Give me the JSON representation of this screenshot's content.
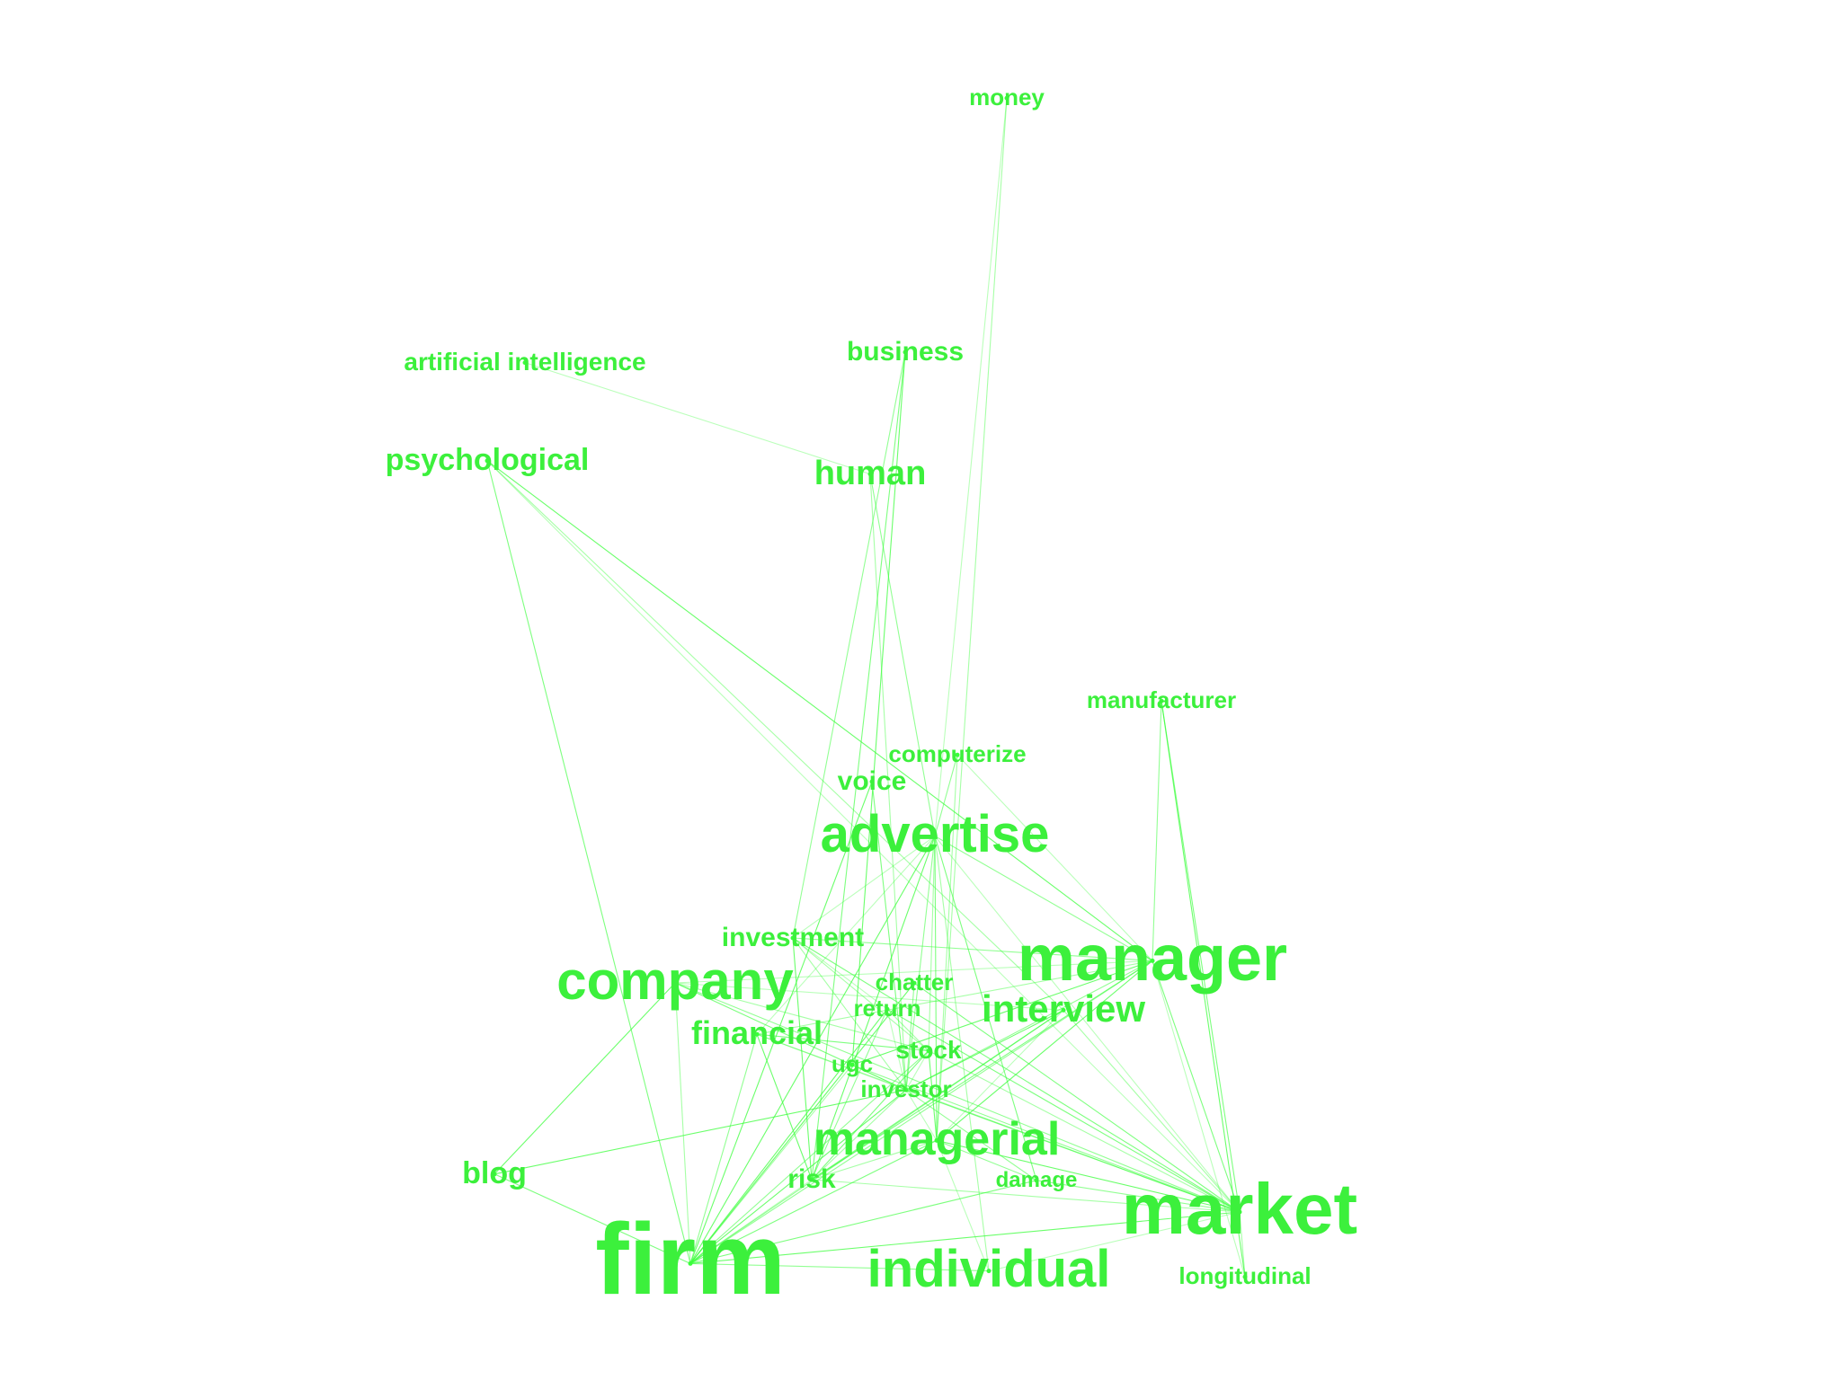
{
  "colors": {
    "text": "#3cf03c",
    "edge": "#39ff3a",
    "background": "#ffffff"
  },
  "terms": {
    "money": "money",
    "business": "business",
    "artificial_intelligence": "artificial intelligence",
    "psychological": "psychological",
    "human": "human",
    "manufacturer": "manufacturer",
    "computerize": "computerize",
    "voice": "voice",
    "advertise": "advertise",
    "investment": "investment",
    "manager": "manager",
    "company": "company",
    "chatter": "chatter",
    "return": "return",
    "interview": "interview",
    "financial": "financial",
    "stock": "stock",
    "ugc": "ugc",
    "investor": "investor",
    "managerial": "managerial",
    "blog": "blog",
    "risk": "risk",
    "damage": "damage",
    "market": "market",
    "firm": "firm",
    "individual": "individual",
    "longitudinal": "longitudinal"
  },
  "edges": [
    [
      "money",
      "advertise"
    ],
    [
      "money",
      "managerial"
    ],
    [
      "business",
      "investment"
    ],
    [
      "business",
      "risk"
    ],
    [
      "business",
      "ugc"
    ],
    [
      "artificial_intelligence",
      "human"
    ],
    [
      "human",
      "investor"
    ],
    [
      "human",
      "advertise"
    ],
    [
      "psychological",
      "firm"
    ],
    [
      "psychological",
      "manager"
    ],
    [
      "psychological",
      "market"
    ],
    [
      "psychological",
      "interview"
    ],
    [
      "manufacturer",
      "manager"
    ],
    [
      "manufacturer",
      "market"
    ],
    [
      "manufacturer",
      "longitudinal"
    ],
    [
      "computerize",
      "manager"
    ],
    [
      "computerize",
      "managerial"
    ],
    [
      "computerize",
      "advertise"
    ],
    [
      "voice",
      "investor"
    ],
    [
      "voice",
      "firm"
    ],
    [
      "advertise",
      "investment"
    ],
    [
      "advertise",
      "stock"
    ],
    [
      "advertise",
      "investor"
    ],
    [
      "advertise",
      "managerial"
    ],
    [
      "advertise",
      "firm"
    ],
    [
      "advertise",
      "market"
    ],
    [
      "advertise",
      "individual"
    ],
    [
      "advertise",
      "manager"
    ],
    [
      "advertise",
      "damage"
    ],
    [
      "advertise",
      "risk"
    ],
    [
      "advertise",
      "financial"
    ],
    [
      "investment",
      "investor"
    ],
    [
      "investment",
      "manager"
    ],
    [
      "investment",
      "market"
    ],
    [
      "investment",
      "risk"
    ],
    [
      "investment",
      "return"
    ],
    [
      "investment",
      "stock"
    ],
    [
      "manager",
      "firm"
    ],
    [
      "manager",
      "market"
    ],
    [
      "manager",
      "managerial"
    ],
    [
      "manager",
      "company"
    ],
    [
      "manager",
      "financial"
    ],
    [
      "manager",
      "investor"
    ],
    [
      "manager",
      "risk"
    ],
    [
      "manager",
      "ugc"
    ],
    [
      "manager",
      "longitudinal"
    ],
    [
      "company",
      "firm"
    ],
    [
      "company",
      "market"
    ],
    [
      "company",
      "investor"
    ],
    [
      "company",
      "blog"
    ],
    [
      "company",
      "interview"
    ],
    [
      "company",
      "stock"
    ],
    [
      "chatter",
      "investor"
    ],
    [
      "chatter",
      "market"
    ],
    [
      "chatter",
      "firm"
    ],
    [
      "return",
      "investor"
    ],
    [
      "return",
      "stock"
    ],
    [
      "return",
      "risk"
    ],
    [
      "return",
      "market"
    ],
    [
      "return",
      "firm"
    ],
    [
      "interview",
      "managerial"
    ],
    [
      "interview",
      "market"
    ],
    [
      "interview",
      "firm"
    ],
    [
      "interview",
      "risk"
    ],
    [
      "interview",
      "investor"
    ],
    [
      "financial",
      "investor"
    ],
    [
      "financial",
      "market"
    ],
    [
      "financial",
      "firm"
    ],
    [
      "financial",
      "stock"
    ],
    [
      "financial",
      "risk"
    ],
    [
      "stock",
      "investor"
    ],
    [
      "stock",
      "market"
    ],
    [
      "stock",
      "firm"
    ],
    [
      "stock",
      "risk"
    ],
    [
      "stock",
      "managerial"
    ],
    [
      "ugc",
      "investor"
    ],
    [
      "ugc",
      "firm"
    ],
    [
      "ugc",
      "market"
    ],
    [
      "investor",
      "market"
    ],
    [
      "investor",
      "firm"
    ],
    [
      "investor",
      "managerial"
    ],
    [
      "investor",
      "risk"
    ],
    [
      "investor",
      "damage"
    ],
    [
      "managerial",
      "firm"
    ],
    [
      "managerial",
      "market"
    ],
    [
      "managerial",
      "individual"
    ],
    [
      "managerial",
      "risk"
    ],
    [
      "managerial",
      "damage"
    ],
    [
      "blog",
      "firm"
    ],
    [
      "blog",
      "investor"
    ],
    [
      "risk",
      "firm"
    ],
    [
      "risk",
      "market"
    ],
    [
      "damage",
      "market"
    ],
    [
      "damage",
      "firm"
    ],
    [
      "market",
      "firm"
    ],
    [
      "market",
      "individual"
    ],
    [
      "market",
      "longitudinal"
    ],
    [
      "individual",
      "firm"
    ]
  ]
}
